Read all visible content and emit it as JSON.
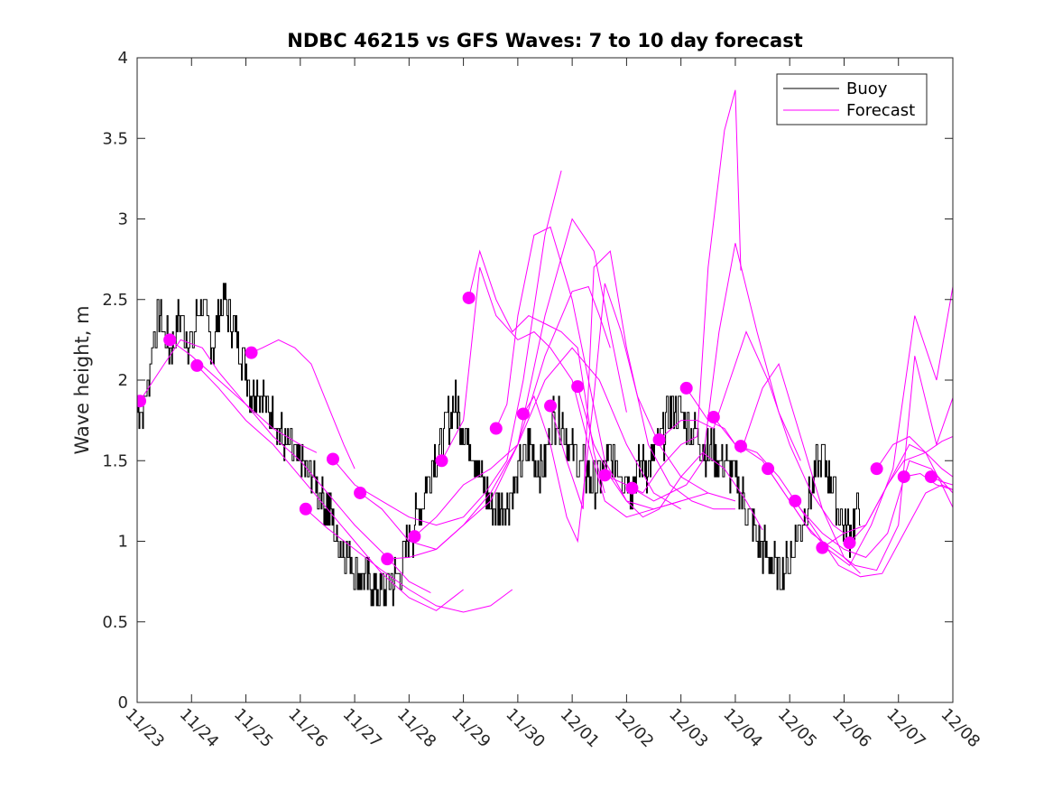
{
  "chart_data": {
    "type": "line",
    "title": "NDBC 46215 vs GFS Waves: 7 to 10 day forecast",
    "xlabel": "",
    "ylabel": "Wave height, m",
    "xlim_days": [
      0,
      15
    ],
    "ylim": [
      0,
      4
    ],
    "x_ticks": [
      {
        "day": 0,
        "label": "11/23"
      },
      {
        "day": 1,
        "label": "11/24"
      },
      {
        "day": 2,
        "label": "11/25"
      },
      {
        "day": 3,
        "label": "11/26"
      },
      {
        "day": 4,
        "label": "11/27"
      },
      {
        "day": 5,
        "label": "11/28"
      },
      {
        "day": 6,
        "label": "11/29"
      },
      {
        "day": 7,
        "label": "11/30"
      },
      {
        "day": 8,
        "label": "12/01"
      },
      {
        "day": 9,
        "label": "12/02"
      },
      {
        "day": 10,
        "label": "12/03"
      },
      {
        "day": 11,
        "label": "12/04"
      },
      {
        "day": 12,
        "label": "12/05"
      },
      {
        "day": 13,
        "label": "12/06"
      },
      {
        "day": 14,
        "label": "12/07"
      },
      {
        "day": 15,
        "label": "12/08"
      }
    ],
    "y_ticks": [
      {
        "value": 0,
        "label": "0"
      },
      {
        "value": 0.5,
        "label": "0.5"
      },
      {
        "value": 1,
        "label": "1"
      },
      {
        "value": 1.5,
        "label": "1.5"
      },
      {
        "value": 2,
        "label": "2"
      },
      {
        "value": 2.5,
        "label": "2.5"
      },
      {
        "value": 3,
        "label": "3"
      },
      {
        "value": 3.5,
        "label": "3.5"
      },
      {
        "value": 4,
        "label": "4"
      }
    ],
    "grid": false,
    "legend": {
      "position": "top-right",
      "entries": [
        {
          "name": "Buoy",
          "color": "#000000"
        },
        {
          "name": "Forecast",
          "color": "#ff00ff"
        }
      ]
    },
    "colors": {
      "buoy": "#000000",
      "forecast": "#ff00ff",
      "axis": "#262626"
    },
    "buoy": {
      "name": "Buoy",
      "x_day": [
        0,
        0.1,
        0.2,
        0.3,
        0.4,
        0.5,
        0.6,
        0.7,
        0.8,
        0.9,
        1.0,
        1.1,
        1.2,
        1.3,
        1.4,
        1.5,
        1.6,
        1.7,
        1.8,
        1.9,
        2.0,
        2.1,
        2.2,
        2.3,
        2.4,
        2.5,
        2.6,
        2.7,
        2.8,
        2.9,
        3.0,
        3.1,
        3.2,
        3.3,
        3.4,
        3.5,
        3.6,
        3.7,
        3.8,
        3.9,
        4.0,
        4.1,
        4.2,
        4.3,
        4.4,
        4.5,
        4.6,
        4.7,
        4.8,
        4.9,
        5.0,
        5.1,
        5.2,
        5.3,
        5.4,
        5.5,
        5.6,
        5.7,
        5.8,
        5.9,
        6.0,
        6.1,
        6.2,
        6.3,
        6.4,
        6.5,
        6.6,
        6.7,
        6.8,
        6.9,
        7.0,
        7.1,
        7.2,
        7.3,
        7.4,
        7.5,
        7.6,
        7.7,
        7.8,
        7.9,
        8.0,
        8.1,
        8.2,
        8.3,
        8.4,
        8.5,
        8.6,
        8.7,
        8.8,
        8.9,
        9.0,
        9.1,
        9.2,
        9.3,
        9.4,
        9.5,
        9.6,
        9.7,
        9.8,
        9.9,
        10.0,
        10.1,
        10.2,
        10.3,
        10.4,
        10.5,
        10.6,
        10.7,
        10.8,
        10.9,
        11.0,
        11.1,
        11.2,
        11.3,
        11.4,
        11.5,
        11.6,
        11.7,
        11.8,
        11.9,
        12.0,
        12.1,
        12.2,
        12.3,
        12.4,
        12.5,
        12.6,
        12.7,
        12.8,
        12.9,
        13.0,
        13.1,
        13.2,
        13.3,
        13.4,
        13.5,
        13.6,
        13.7,
        13.8,
        13.9,
        14.0,
        14.1,
        14.2,
        14.3,
        14.4,
        14.5
      ],
      "values": [
        1.85,
        1.8,
        2.0,
        2.3,
        2.4,
        2.3,
        2.2,
        2.3,
        2.4,
        2.3,
        2.2,
        2.4,
        2.5,
        2.3,
        2.2,
        2.4,
        2.5,
        2.4,
        2.3,
        2.2,
        2.1,
        1.9,
        2.0,
        1.9,
        1.8,
        1.8,
        1.7,
        1.6,
        1.6,
        1.5,
        1.5,
        1.4,
        1.4,
        1.35,
        1.3,
        1.2,
        1.1,
        1.0,
        0.95,
        0.9,
        0.85,
        0.8,
        0.75,
        0.75,
        0.7,
        0.7,
        0.72,
        0.75,
        0.8,
        0.9,
        1.0,
        1.1,
        1.2,
        1.35,
        1.45,
        1.55,
        1.6,
        1.75,
        1.85,
        1.8,
        1.7,
        1.6,
        1.55,
        1.4,
        1.3,
        1.25,
        1.2,
        1.2,
        1.25,
        1.3,
        1.4,
        1.5,
        1.6,
        1.5,
        1.45,
        1.5,
        1.7,
        1.8,
        1.75,
        1.65,
        1.55,
        1.5,
        1.45,
        1.4,
        1.35,
        1.4,
        1.45,
        1.5,
        1.5,
        1.45,
        1.4,
        1.35,
        1.45,
        1.5,
        1.45,
        1.5,
        1.6,
        1.7,
        1.8,
        1.85,
        1.8,
        1.75,
        1.7,
        1.65,
        1.6,
        1.55,
        1.55,
        1.5,
        1.5,
        1.45,
        1.4,
        1.3,
        1.2,
        1.1,
        1.0,
        0.95,
        0.9,
        0.85,
        0.8,
        0.85,
        0.9,
        1.0,
        1.1,
        1.2,
        1.35,
        1.45,
        1.5,
        1.45,
        1.35,
        1.2,
        1.1,
        1.05,
        1.15,
        1.2
      ]
    },
    "forecasts": [
      {
        "start_day": 0.05,
        "start_value": 1.87,
        "x_day": [
          0.05,
          0.5,
          0.8,
          1.2,
          1.5,
          2.0,
          2.5,
          3.0,
          3.3
        ],
        "values": [
          1.87,
          2.1,
          2.25,
          2.2,
          2.05,
          1.85,
          1.7,
          1.6,
          1.55
        ]
      },
      {
        "start_day": 0.6,
        "start_value": 2.25,
        "x_day": [
          0.6,
          1.0,
          1.5,
          2.0,
          2.5,
          3.0,
          3.5,
          4.0,
          4.6,
          5.0,
          5.4
        ],
        "values": [
          2.25,
          2.15,
          2.0,
          1.85,
          1.65,
          1.5,
          1.3,
          1.1,
          0.9,
          0.75,
          0.68
        ]
      },
      {
        "start_day": 1.1,
        "start_value": 2.09,
        "x_day": [
          1.1,
          1.5,
          2.0,
          2.5,
          3.0,
          3.5,
          4.0,
          4.5,
          5.0,
          5.5,
          6.0
        ],
        "values": [
          2.09,
          1.95,
          1.75,
          1.6,
          1.4,
          1.2,
          1.0,
          0.8,
          0.65,
          0.57,
          0.7
        ]
      },
      {
        "start_day": 2.1,
        "start_value": 2.17,
        "x_day": [
          2.1,
          2.3,
          2.6,
          2.9,
          3.2,
          3.5,
          3.8,
          4.0
        ],
        "values": [
          2.17,
          2.2,
          2.25,
          2.2,
          2.1,
          1.85,
          1.6,
          1.45
        ]
      },
      {
        "start_day": 3.1,
        "start_value": 1.2,
        "x_day": [
          3.1,
          3.5,
          4.0,
          4.5,
          5.0,
          5.5,
          6.0,
          6.5,
          6.9
        ],
        "values": [
          1.2,
          1.08,
          0.95,
          0.82,
          0.7,
          0.6,
          0.56,
          0.6,
          0.7
        ]
      },
      {
        "start_day": 3.6,
        "start_value": 1.51,
        "x_day": [
          3.6,
          4.0,
          4.5,
          5.0,
          5.5,
          6.0,
          6.4,
          6.8,
          7.1,
          7.5,
          7.8
        ],
        "values": [
          1.51,
          1.35,
          1.25,
          1.15,
          1.1,
          1.15,
          1.3,
          1.5,
          2.0,
          2.9,
          3.3
        ]
      },
      {
        "start_day": 4.1,
        "start_value": 1.3,
        "x_day": [
          4.1,
          4.5,
          5.0,
          5.5,
          6.0,
          6.5,
          7.0,
          7.5,
          8.0,
          8.4,
          8.7,
          9.0
        ],
        "values": [
          1.3,
          1.2,
          1.0,
          0.95,
          1.1,
          1.25,
          1.6,
          2.4,
          3.0,
          2.8,
          2.3,
          1.8
        ]
      },
      {
        "start_day": 4.6,
        "start_value": 0.89,
        "x_day": [
          4.6,
          5.0,
          5.5,
          6.0,
          6.5,
          7.0,
          7.5,
          8.0,
          8.3,
          8.5,
          8.7
        ],
        "values": [
          0.89,
          0.9,
          0.95,
          1.1,
          1.3,
          1.6,
          2.15,
          2.55,
          2.58,
          2.4,
          2.2
        ]
      },
      {
        "start_day": 5.1,
        "start_value": 1.03,
        "x_day": [
          5.1,
          5.5,
          6.0,
          6.5,
          7.0,
          7.5,
          8.0,
          8.5,
          9.0,
          9.5,
          10.0
        ],
        "values": [
          1.03,
          1.15,
          1.35,
          1.45,
          1.6,
          2.0,
          2.2,
          2.0,
          1.6,
          1.3,
          1.2
        ]
      },
      {
        "start_day": 5.6,
        "start_value": 1.5,
        "x_day": [
          5.6,
          6.0,
          6.3,
          6.6,
          7.0,
          7.3,
          7.6,
          8.0,
          8.3,
          8.6,
          9.0,
          9.5,
          10.0,
          10.5
        ],
        "values": [
          1.5,
          1.75,
          2.7,
          2.4,
          2.25,
          2.3,
          2.2,
          2.0,
          1.6,
          1.25,
          1.15,
          1.2,
          1.25,
          1.3
        ]
      },
      {
        "start_day": 6.1,
        "start_value": 2.51,
        "x_day": [
          6.1,
          6.3,
          6.6,
          6.9,
          7.2,
          7.5,
          7.8,
          8.1,
          8.4,
          8.6
        ],
        "values": [
          2.51,
          2.8,
          2.5,
          2.3,
          2.4,
          2.35,
          2.3,
          2.2,
          1.55,
          1.3
        ]
      },
      {
        "start_day": 6.6,
        "start_value": 1.7,
        "x_day": [
          6.6,
          6.8,
          7.0,
          7.3,
          7.6,
          8.0,
          8.3,
          8.6,
          9.0,
          9.5,
          10.0
        ],
        "values": [
          1.7,
          1.85,
          2.4,
          2.9,
          2.95,
          2.5,
          2.0,
          1.5,
          1.25,
          1.2,
          1.25
        ]
      },
      {
        "start_day": 7.1,
        "start_value": 1.79,
        "x_day": [
          7.1,
          7.3,
          7.6,
          7.9,
          8.1,
          8.4,
          8.6,
          8.9,
          9.2,
          9.6,
          10.0,
          10.5,
          11.0
        ],
        "values": [
          1.79,
          1.9,
          1.6,
          1.15,
          1.0,
          1.9,
          2.6,
          2.3,
          1.9,
          1.6,
          1.4,
          1.3,
          1.25
        ]
      },
      {
        "start_day": 7.6,
        "start_value": 1.84,
        "x_day": [
          7.6,
          7.9,
          8.2,
          8.4,
          8.7,
          9.0,
          9.4,
          9.8,
          10.2,
          10.6,
          11.0
        ],
        "values": [
          1.84,
          1.5,
          1.2,
          2.7,
          2.8,
          2.2,
          1.6,
          1.35,
          1.25,
          1.2,
          1.2
        ]
      },
      {
        "start_day": 8.1,
        "start_value": 1.96,
        "x_day": [
          8.1,
          8.4,
          8.7,
          9.0,
          9.3,
          9.6,
          10.0,
          10.4,
          10.8,
          11.2,
          11.5
        ],
        "values": [
          1.96,
          1.6,
          1.4,
          1.25,
          1.15,
          1.2,
          1.4,
          1.55,
          1.45,
          1.25,
          1.07
        ]
      },
      {
        "start_day": 8.6,
        "start_value": 1.41,
        "x_day": [
          8.6,
          9.0,
          9.3,
          9.6,
          10.0,
          10.3,
          10.5,
          10.8,
          11.0,
          11.1
        ],
        "values": [
          1.41,
          1.35,
          1.3,
          1.45,
          1.6,
          1.65,
          2.7,
          3.55,
          3.8,
          2.68
        ]
      },
      {
        "start_day": 9.1,
        "start_value": 1.33,
        "x_day": [
          9.1,
          9.5,
          9.8,
          10.1,
          10.4,
          10.7,
          11.0,
          11.4,
          11.8,
          12.2
        ],
        "values": [
          1.33,
          1.25,
          1.3,
          1.35,
          1.5,
          2.3,
          2.85,
          2.3,
          1.8,
          1.5
        ]
      },
      {
        "start_day": 9.6,
        "start_value": 1.63,
        "x_day": [
          9.6,
          10.0,
          10.3,
          10.6,
          10.9,
          11.2,
          11.6,
          12.0,
          12.4,
          12.8,
          13.0
        ],
        "values": [
          1.63,
          1.75,
          1.75,
          1.7,
          2.0,
          2.3,
          2.0,
          1.6,
          1.3,
          1.1,
          1.05
        ]
      },
      {
        "start_day": 10.1,
        "start_value": 1.95,
        "x_day": [
          10.1,
          10.5,
          10.8,
          11.1,
          11.5,
          11.8,
          12.2,
          12.6,
          13.0,
          13.3
        ],
        "values": [
          1.95,
          1.75,
          1.7,
          1.55,
          1.95,
          2.1,
          1.65,
          1.2,
          0.9,
          0.8
        ]
      },
      {
        "start_day": 10.6,
        "start_value": 1.77,
        "x_day": [
          10.6,
          11.0,
          11.4,
          11.8,
          12.2,
          12.6,
          13.0,
          13.4,
          13.8,
          14.2,
          14.6,
          15.0
        ],
        "values": [
          1.77,
          1.6,
          1.55,
          1.4,
          1.2,
          1.05,
          0.95,
          0.9,
          1.05,
          1.5,
          1.45,
          1.3
        ]
      },
      {
        "start_day": 11.1,
        "start_value": 1.59,
        "x_day": [
          11.1,
          11.5,
          11.9,
          12.3,
          12.7,
          13.1,
          13.5,
          13.9,
          14.3,
          14.7,
          15.0
        ],
        "values": [
          1.59,
          1.5,
          1.3,
          1.1,
          0.95,
          0.85,
          1.1,
          1.45,
          2.4,
          2.0,
          2.58
        ]
      },
      {
        "start_day": 11.6,
        "start_value": 1.45,
        "x_day": [
          11.6,
          12.0,
          12.4,
          12.8,
          13.2,
          13.6,
          14.0,
          14.3,
          14.7,
          15.0
        ],
        "values": [
          1.45,
          1.25,
          1.05,
          0.95,
          0.85,
          0.82,
          1.1,
          2.15,
          1.6,
          1.89
        ]
      },
      {
        "start_day": 12.1,
        "start_value": 1.25,
        "x_day": [
          12.1,
          12.5,
          12.9,
          13.3,
          13.7,
          14.1,
          14.5,
          14.8,
          15.0
        ],
        "values": [
          1.25,
          1.05,
          0.85,
          0.78,
          0.8,
          1.05,
          1.3,
          1.35,
          1.21
        ]
      },
      {
        "start_day": 12.6,
        "start_value": 0.96,
        "x_day": [
          12.6,
          13.0,
          13.4,
          13.8,
          14.2,
          14.5,
          14.8,
          15.0
        ],
        "values": [
          0.96,
          1.05,
          1.1,
          1.35,
          1.6,
          1.55,
          1.62,
          1.65
        ]
      },
      {
        "start_day": 13.1,
        "start_value": 0.99,
        "x_day": [
          13.1,
          13.4,
          13.8,
          14.1,
          14.5,
          14.8,
          15.0
        ],
        "values": [
          0.99,
          1.1,
          1.35,
          1.5,
          1.55,
          1.35,
          1.32
        ]
      },
      {
        "start_day": 13.6,
        "start_value": 1.45,
        "x_day": [
          13.6,
          13.9,
          14.2,
          14.5,
          14.8,
          15.0
        ],
        "values": [
          1.45,
          1.6,
          1.65,
          1.55,
          1.45,
          1.4
        ]
      },
      {
        "start_day": 14.1,
        "start_value": 1.4,
        "x_day": [
          14.1,
          14.4,
          14.7,
          15.0
        ],
        "values": [
          1.4,
          1.42,
          1.35,
          1.32
        ]
      },
      {
        "start_day": 14.6,
        "start_value": 1.4,
        "x_day": [
          14.6,
          14.8,
          15.0
        ],
        "values": [
          1.4,
          1.37,
          1.35
        ]
      }
    ]
  }
}
